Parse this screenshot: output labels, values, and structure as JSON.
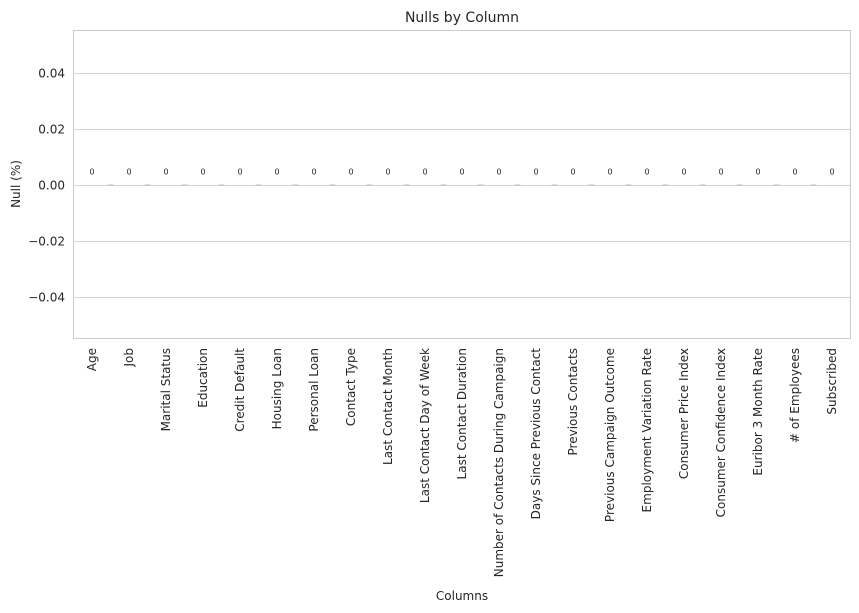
{
  "chart_data": {
    "type": "bar",
    "title": "Nulls by Column",
    "xlabel": "Columns",
    "ylabel": "Null (%)",
    "ylim": [
      -0.055,
      0.055
    ],
    "yticks": [
      -0.04,
      -0.02,
      0.0,
      0.02,
      0.04
    ],
    "ytick_labels": [
      "−0.04",
      "−0.02",
      "0.00",
      "0.02",
      "0.04"
    ],
    "grid": true,
    "categories": [
      "Age",
      "Job",
      "Marital Status",
      "Education",
      "Credit Default",
      "Housing Loan",
      "Personal Loan",
      "Contact Type",
      "Last Contact Month",
      "Last Contact Day of Week",
      "Last Contact Duration",
      "Number of Contacts During Campaign",
      "Days Since Previous Contact",
      "Previous Contacts",
      "Previous Campaign Outcome",
      "Employment Variation Rate",
      "Consumer Price Index",
      "Consumer Confidence Index",
      "Euribor 3 Month Rate",
      "# of Employees",
      "Subscribed"
    ],
    "values": [
      0,
      0,
      0,
      0,
      0,
      0,
      0,
      0,
      0,
      0,
      0,
      0,
      0,
      0,
      0,
      0,
      0,
      0,
      0,
      0,
      0
    ],
    "data_labels": [
      "0",
      "0",
      "0",
      "0",
      "0",
      "0",
      "0",
      "0",
      "0",
      "0",
      "0",
      "0",
      "0",
      "0",
      "0",
      "0",
      "0",
      "0",
      "0",
      "0",
      "0"
    ]
  }
}
